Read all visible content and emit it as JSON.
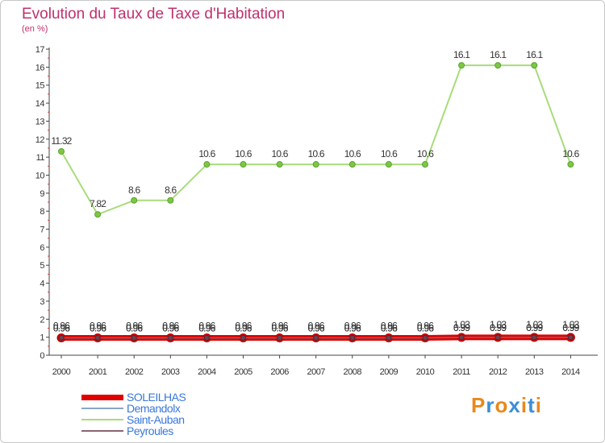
{
  "header": {
    "title": "Evolution du Taux de Taxe d'Habitation",
    "unit": "(en %)"
  },
  "chart_data": {
    "type": "line",
    "title": "Evolution du Taux de Taxe d'Habitation",
    "ylabel": "(en %)",
    "xlabel": "",
    "x": [
      "2000",
      "2001",
      "2002",
      "2003",
      "2004",
      "2005",
      "2006",
      "2007",
      "2008",
      "2009",
      "2010",
      "2011",
      "2012",
      "2013",
      "2014"
    ],
    "ylim": [
      0,
      17
    ],
    "yticks": [
      0,
      1,
      2,
      3,
      4,
      5,
      6,
      7,
      8,
      9,
      10,
      11,
      12,
      13,
      14,
      15,
      16,
      17
    ],
    "grid": false,
    "legend_position": "bottom-left",
    "series": [
      {
        "name": "SOLEILHAS",
        "color": "#e00000",
        "values": [
          0.96,
          0.96,
          0.96,
          0.96,
          0.96,
          0.96,
          0.96,
          0.96,
          0.96,
          0.96,
          0.96,
          0.99,
          0.99,
          0.99,
          0.99
        ],
        "labels": [
          "0.96",
          "0.96",
          "0.96",
          "0.96",
          "0.96",
          "0.96",
          "0.96",
          "0.96",
          "0.96",
          "0.96",
          "0.96",
          "0.99",
          "0.99",
          "0.99",
          "0.99"
        ]
      },
      {
        "name": "Demandolx",
        "color": "#8aa6c8",
        "values": [
          0.96,
          0.96,
          0.96,
          0.96,
          0.96,
          0.96,
          0.96,
          0.96,
          0.96,
          0.96,
          0.96,
          1.03,
          1.03,
          1.03,
          1.03
        ],
        "labels": [
          "0.96",
          "0.96",
          "0.96",
          "0.96",
          "0.96",
          "0.96",
          "0.96",
          "0.96",
          "0.96",
          "0.96",
          "0.96",
          "1.03",
          "1.03",
          "1.03",
          "1.03"
        ]
      },
      {
        "name": "Saint-Auban",
        "color": "#a8dc7c",
        "values": [
          11.32,
          7.82,
          8.6,
          8.6,
          10.6,
          10.6,
          10.6,
          10.6,
          10.6,
          10.6,
          10.6,
          16.1,
          16.1,
          16.1,
          10.6
        ],
        "labels": [
          "11.32",
          "7.82",
          "8.6",
          "8.6",
          "10.6",
          "10.6",
          "10.6",
          "10.6",
          "10.6",
          "10.6",
          "10.6",
          "16.1",
          "16.1",
          "16.1",
          "10.6"
        ]
      },
      {
        "name": "Peyroules",
        "color": "#8a6470",
        "values": [
          0.96,
          0.96,
          0.96,
          0.96,
          0.96,
          0.96,
          0.96,
          0.96,
          0.96,
          0.96,
          0.96,
          0.99,
          0.99,
          0.99,
          0.99
        ],
        "labels": [
          "0.96",
          "0.96",
          "0.96",
          "0.96",
          "0.96",
          "0.96",
          "0.96",
          "0.96",
          "0.96",
          "0.96",
          "0.96",
          "0.99",
          "0.99",
          "0.99",
          "0.99"
        ]
      }
    ]
  },
  "logo": {
    "text": "Proxiti",
    "colors": [
      "#e8881c",
      "#3c8ed8",
      "#e8881c",
      "#3c8ed8",
      "#e8881c",
      "#3c8ed8",
      "#e8881c"
    ]
  }
}
